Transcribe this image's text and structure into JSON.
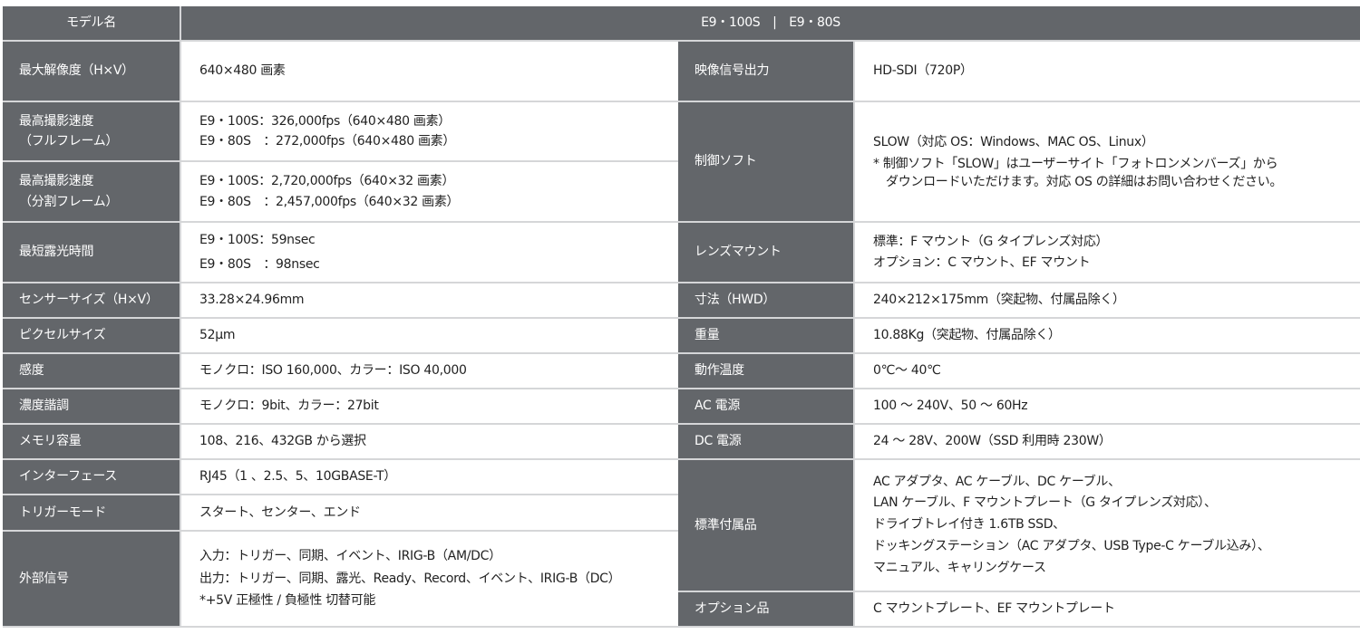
{
  "header": {
    "label": "モデル名",
    "models": "E9・100S　|　E9・80S"
  },
  "colors": {
    "label_bg": "#63666a",
    "border": "#d5d6d8"
  },
  "left": [
    {
      "label": "最大解像度（H×V）",
      "lines": [
        "640×480 画素"
      ]
    },
    {
      "label": [
        "最高撮影速度",
        "（フルフレーム）"
      ],
      "lines": [
        "E9・100S：326,000fps（640×480 画素）",
        "E9・80S　：272,000fps（640×480 画素）"
      ]
    },
    {
      "label": [
        "最高撮影速度",
        "（分割フレーム）"
      ],
      "lines": [
        "E9・100S：2,720,000fps（640×32 画素）",
        "E9・80S　：2,457,000fps（640×32 画素）"
      ]
    },
    {
      "label": "最短露光時間",
      "lines": [
        "E9・100S：59nsec",
        "E9・80S　：98nsec"
      ]
    },
    {
      "label": "センサーサイズ（H×V）",
      "lines": [
        "33.28×24.96mm"
      ]
    },
    {
      "label": "ピクセルサイズ",
      "lines": [
        "52µm"
      ]
    },
    {
      "label": "感度",
      "lines": [
        "モノクロ：ISO 160,000、カラー：ISO 40,000"
      ]
    },
    {
      "label": "濃度諧調",
      "lines": [
        "モノクロ：9bit、カラー：27bit"
      ]
    },
    {
      "label": "メモリ容量",
      "lines": [
        "108、216、432GB から選択"
      ]
    },
    {
      "label": "インターフェース",
      "lines": [
        "RJ45（1 、2.5、5、10GBASE-T）"
      ]
    },
    {
      "label": "トリガーモード",
      "lines": [
        "スタート、センター、エンド"
      ]
    },
    {
      "label": "外部信号",
      "lines": [
        "入力：トリガー、同期、イベント、IRIG-B（AM/DC）",
        "出力：トリガー、同期、露光、Ready、Record、イベント、IRIG-B（DC）",
        "*+5V 正極性 / 負極性 切替可能"
      ]
    }
  ],
  "right": [
    {
      "label": "映像信号出力",
      "lines": [
        "HD-SDI（720P）"
      ]
    },
    {
      "label": "制御ソフト",
      "lines": [
        "SLOW（対応 OS：Windows、MAC OS、Linux）",
        "* 制御ソフト「SLOW」はユーザーサイト「フォトロンメンバーズ」から",
        "ダウンロードいただけます。対応 OS の詳細はお問い合わせください。"
      ]
    },
    {
      "label": "レンズマウント",
      "lines": [
        "標準：F マウント（G タイプレンズ対応）",
        "オプション：C マウント、EF マウント"
      ]
    },
    {
      "label": "寸法（HWD）",
      "lines": [
        "240×212×175mm（突起物、付属品除く）"
      ]
    },
    {
      "label": "重量",
      "lines": [
        "10.88Kg（突起物、付属品除く）"
      ]
    },
    {
      "label": "動作温度",
      "lines": [
        "0℃～ 40℃"
      ]
    },
    {
      "label": "AC 電源",
      "lines": [
        "100 ～ 240V、50 ～ 60Hz"
      ]
    },
    {
      "label": "DC 電源",
      "lines": [
        "24 ～ 28V、200W（SSD 利用時 230W）"
      ]
    },
    {
      "label": "標準付属品",
      "lines": [
        "AC アダプタ、AC ケーブル、DC ケーブル、",
        "LAN ケーブル、F マウントプレート（G タイプレンズ対応）、",
        "ドライブトレイ付き 1.6TB SSD、",
        "ドッキングステーション（AC アダプタ、USB Type-C ケーブル込み）、",
        "マニュアル、キャリングケース"
      ]
    },
    {
      "label": "オプション品",
      "lines": [
        "C マウントプレート、EF マウントプレート"
      ]
    }
  ]
}
